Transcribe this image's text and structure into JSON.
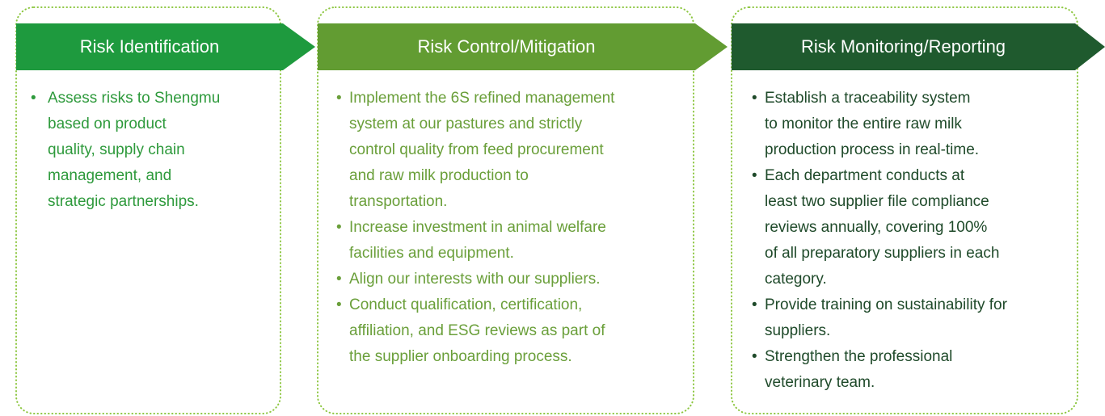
{
  "columns": [
    {
      "title": "Risk Identification",
      "items": [
        [
          "Assess risks to Shengmu",
          "based on product",
          "quality, supply chain",
          "management, and",
          "strategic partnerships."
        ]
      ]
    },
    {
      "title": "Risk Control/Mitigation",
      "items": [
        [
          "Implement the 6S refined management",
          "system at our pastures and strictly",
          "control quality from feed procurement",
          "and raw milk production to",
          "transportation."
        ],
        [
          "Increase investment in animal welfare",
          "facilities and equipment."
        ],
        [
          "Align our interests with our suppliers."
        ],
        [
          "Conduct qualification, certification,",
          "affiliation, and ESG reviews as part of",
          "the supplier onboarding process."
        ]
      ]
    },
    {
      "title": "Risk Monitoring/Reporting",
      "items": [
        [
          "Establish a traceability system",
          "to monitor the entire raw milk",
          "production process in real-time."
        ],
        [
          "Each department conducts at",
          "least two supplier file compliance",
          "reviews annually, covering 100%",
          "of all preparatory suppliers in each",
          "category."
        ],
        [
          "Provide training on sustainability for",
          "suppliers."
        ],
        [
          "Strengthen the professional",
          "veterinary team."
        ]
      ]
    }
  ]
}
